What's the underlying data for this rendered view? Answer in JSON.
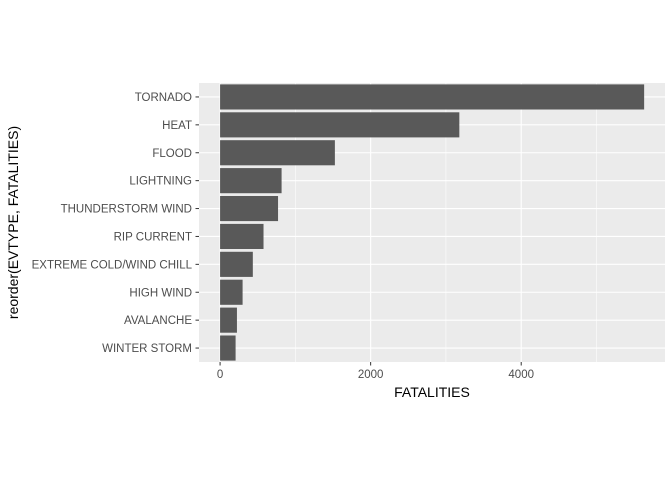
{
  "chart_data": {
    "type": "bar",
    "orientation": "horizontal",
    "title": "",
    "xlabel": "FATALITIES",
    "ylabel": "reorder(EVTYPE, FATALITIES)",
    "categories": [
      "TORNADO",
      "HEAT",
      "FLOOD",
      "LIGHTNING",
      "THUNDERSTORM WIND",
      "RIP CURRENT",
      "EXTREME COLD/WIND CHILL",
      "HIGH WIND",
      "AVALANCHE",
      "WINTER STORM"
    ],
    "values": [
      5633,
      3178,
      1525,
      817,
      770,
      577,
      435,
      299,
      224,
      206
    ],
    "xlim": [
      -280,
      5910
    ],
    "xticks": [
      0,
      2000,
      4000
    ],
    "xtick_labels": [
      "0",
      "2000",
      "4000"
    ],
    "grid": true,
    "legend": "none",
    "colors": {
      "panel_background": "#ebebeb",
      "grid_major": "#ffffff",
      "bar_fill": "#595959",
      "tick_text": "#4d4d4d",
      "tick_marks": "#333333",
      "axis_title_text": "#000000"
    }
  }
}
